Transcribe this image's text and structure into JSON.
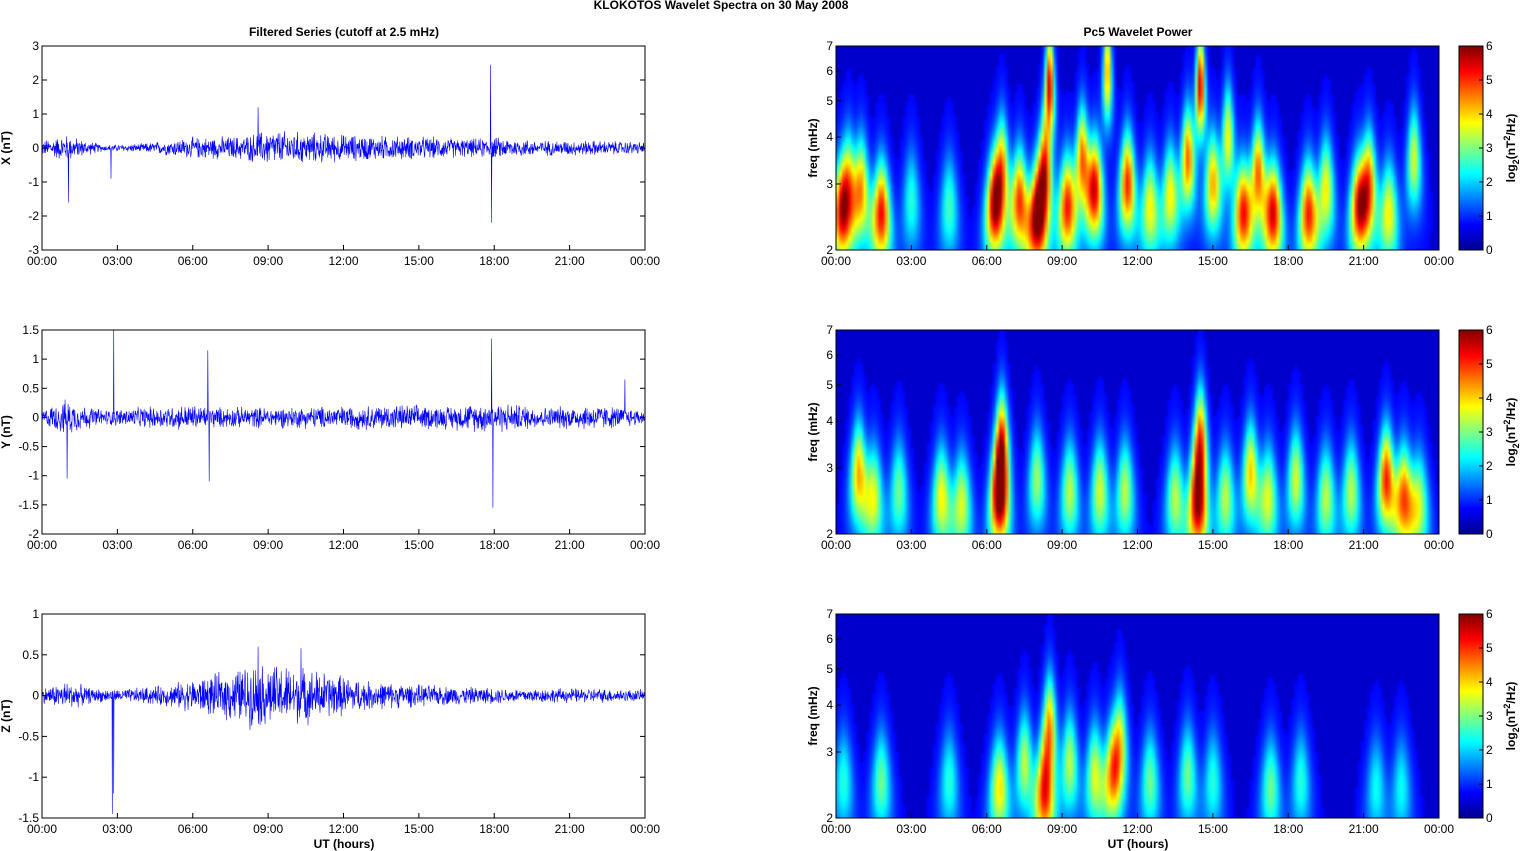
{
  "figure": {
    "title": "KLOKOTOS Wavelet Spectra on 30 May      2008",
    "left_title": "Filtered Series (cutoff at 2.5 mHz)",
    "right_title": "Pc5 Wavelet Power",
    "xlabel": "UT (hours)",
    "freq_label": "freq (mHz)",
    "colorbar_label_prefix": "log",
    "colorbar_label_sub": "2",
    "colorbar_label_mid": "(nT",
    "colorbar_label_sup": "2",
    "colorbar_label_suffix": "/Hz)"
  },
  "chart_data": [
    {
      "type": "line",
      "name": "x-series",
      "ylabel": "X (nT)",
      "xlim": [
        0,
        24
      ],
      "ylim": [
        -3,
        3
      ],
      "xticks": [
        "00:00",
        "03:00",
        "06:00",
        "09:00",
        "12:00",
        "15:00",
        "18:00",
        "21:00",
        "00:00"
      ],
      "yticks": [
        "-3",
        "-2",
        "-1",
        "0",
        "1",
        "2",
        "3"
      ],
      "color": "#0000ff",
      "noise_envelope": [
        [
          0,
          0.25
        ],
        [
          1,
          0.45
        ],
        [
          1.5,
          0.3
        ],
        [
          2.5,
          0.1
        ],
        [
          4,
          0.15
        ],
        [
          6,
          0.35
        ],
        [
          8,
          0.4
        ],
        [
          9,
          0.6
        ],
        [
          10,
          0.55
        ],
        [
          12,
          0.45
        ],
        [
          14,
          0.4
        ],
        [
          16,
          0.35
        ],
        [
          17,
          0.3
        ],
        [
          18,
          0.35
        ],
        [
          20,
          0.25
        ],
        [
          22,
          0.25
        ],
        [
          24,
          0.2
        ]
      ],
      "spikes": [
        [
          1.05,
          -1.6
        ],
        [
          2.75,
          -0.9
        ],
        [
          8.6,
          1.2
        ],
        [
          17.85,
          2.45
        ],
        [
          17.9,
          -2.2
        ]
      ]
    },
    {
      "type": "line",
      "name": "y-series",
      "ylabel": "Y (nT)",
      "xlim": [
        0,
        24
      ],
      "ylim": [
        -2,
        1.5
      ],
      "xticks": [
        "00:00",
        "03:00",
        "06:00",
        "09:00",
        "12:00",
        "15:00",
        "18:00",
        "21:00",
        "00:00"
      ],
      "yticks": [
        "-2",
        "-1.5",
        "-1",
        "-0.5",
        "0",
        "0.5",
        "1",
        "1.5"
      ],
      "color": "#0000ff",
      "noise_envelope": [
        [
          0,
          0.15
        ],
        [
          1,
          0.35
        ],
        [
          1.5,
          0.25
        ],
        [
          2.5,
          0.15
        ],
        [
          4,
          0.2
        ],
        [
          6,
          0.25
        ],
        [
          7,
          0.2
        ],
        [
          9,
          0.2
        ],
        [
          12,
          0.22
        ],
        [
          14,
          0.25
        ],
        [
          16,
          0.22
        ],
        [
          18,
          0.3
        ],
        [
          20,
          0.2
        ],
        [
          22,
          0.25
        ],
        [
          24,
          0.15
        ]
      ],
      "spikes": [
        [
          1.0,
          -1.05
        ],
        [
          2.85,
          1.5
        ],
        [
          6.6,
          1.15
        ],
        [
          6.65,
          -1.1
        ],
        [
          17.9,
          1.35
        ],
        [
          17.95,
          -1.55
        ],
        [
          23.2,
          0.65
        ]
      ]
    },
    {
      "type": "line",
      "name": "z-series",
      "ylabel": "Z (nT)",
      "xlim": [
        0,
        24
      ],
      "ylim": [
        -1.5,
        1
      ],
      "xticks": [
        "00:00",
        "03:00",
        "06:00",
        "09:00",
        "12:00",
        "15:00",
        "18:00",
        "21:00",
        "00:00"
      ],
      "yticks": [
        "-1.5",
        "-1",
        "-0.5",
        "0",
        "0.5",
        "1"
      ],
      "color": "#0000ff",
      "noise_envelope": [
        [
          0,
          0.1
        ],
        [
          1,
          0.2
        ],
        [
          2,
          0.1
        ],
        [
          3,
          0.08
        ],
        [
          5,
          0.15
        ],
        [
          7,
          0.3
        ],
        [
          8.5,
          0.45
        ],
        [
          10,
          0.4
        ],
        [
          11,
          0.35
        ],
        [
          13,
          0.2
        ],
        [
          15,
          0.15
        ],
        [
          17,
          0.12
        ],
        [
          19,
          0.1
        ],
        [
          22,
          0.1
        ],
        [
          24,
          0.08
        ]
      ],
      "spikes": [
        [
          2.8,
          -1.45
        ],
        [
          2.85,
          -1.2
        ],
        [
          8.6,
          0.6
        ],
        [
          10.3,
          0.58
        ]
      ]
    },
    {
      "type": "heatmap",
      "name": "x-wavelet",
      "ylabel": "freq (mHz)",
      "xlim": [
        0,
        24
      ],
      "ylim": [
        2,
        7
      ],
      "y_scale": "log",
      "yticks": [
        "2",
        "3",
        "4",
        "5",
        "6",
        "7"
      ],
      "xticks": [
        "00:00",
        "03:00",
        "06:00",
        "09:00",
        "12:00",
        "15:00",
        "18:00",
        "21:00",
        "00:00"
      ],
      "colorbar": {
        "range": [
          0,
          6
        ],
        "ticks": [
          "0",
          "1",
          "2",
          "3",
          "4",
          "5",
          "6"
        ],
        "colormap": "jet"
      },
      "blobs": [
        [
          0.2,
          2.5,
          4.5
        ],
        [
          0.5,
          3.0,
          3.5
        ],
        [
          1.0,
          2.9,
          4.0
        ],
        [
          1.8,
          2.5,
          5.2
        ],
        [
          3.0,
          2.7,
          2.0
        ],
        [
          4.5,
          2.6,
          2.2
        ],
        [
          6.3,
          2.6,
          5.2
        ],
        [
          6.6,
          3.3,
          4.0
        ],
        [
          7.3,
          2.7,
          4.8
        ],
        [
          8.0,
          2.4,
          5.5
        ],
        [
          8.3,
          3.2,
          5.0
        ],
        [
          8.5,
          5.5,
          5.5
        ],
        [
          9.2,
          2.6,
          5.0
        ],
        [
          9.8,
          3.5,
          4.5
        ],
        [
          10.3,
          2.9,
          5.3
        ],
        [
          10.8,
          6.0,
          4.2
        ],
        [
          11.6,
          3.0,
          5.0
        ],
        [
          12.5,
          2.6,
          3.5
        ],
        [
          13.3,
          2.8,
          3.5
        ],
        [
          14.0,
          3.5,
          4.5
        ],
        [
          14.5,
          5.5,
          5.5
        ],
        [
          15.0,
          3.0,
          4.0
        ],
        [
          15.6,
          4.0,
          3.5
        ],
        [
          16.2,
          2.5,
          5.0
        ],
        [
          16.8,
          3.2,
          4.5
        ],
        [
          17.4,
          2.5,
          5.3
        ],
        [
          18.8,
          2.5,
          5.0
        ],
        [
          19.5,
          2.9,
          3.5
        ],
        [
          20.8,
          2.6,
          4.8
        ],
        [
          21.2,
          3.0,
          4.5
        ],
        [
          22.0,
          2.5,
          3.5
        ],
        [
          23.0,
          3.5,
          3.2
        ]
      ]
    },
    {
      "type": "heatmap",
      "name": "y-wavelet",
      "ylabel": "freq (mHz)",
      "xlim": [
        0,
        24
      ],
      "ylim": [
        2,
        7
      ],
      "y_scale": "log",
      "yticks": [
        "2",
        "3",
        "4",
        "5",
        "6",
        "7"
      ],
      "xticks": [
        "00:00",
        "03:00",
        "06:00",
        "09:00",
        "12:00",
        "15:00",
        "18:00",
        "21:00",
        "00:00"
      ],
      "colorbar": {
        "range": [
          0,
          6
        ],
        "ticks": [
          "0",
          "1",
          "2",
          "3",
          "4",
          "5",
          "6"
        ],
        "colormap": "jet"
      },
      "blobs": [
        [
          0.9,
          2.9,
          4.0
        ],
        [
          1.5,
          2.5,
          3.2
        ],
        [
          2.5,
          2.6,
          2.5
        ],
        [
          4.2,
          2.5,
          3.5
        ],
        [
          5.0,
          2.4,
          3.2
        ],
        [
          6.5,
          2.5,
          5.8
        ],
        [
          6.6,
          3.5,
          4.6
        ],
        [
          8.0,
          2.8,
          2.8
        ],
        [
          9.3,
          2.6,
          3.0
        ],
        [
          10.5,
          2.6,
          3.2
        ],
        [
          11.5,
          2.6,
          3.0
        ],
        [
          13.5,
          2.5,
          3.0
        ],
        [
          14.4,
          2.4,
          5.6
        ],
        [
          14.5,
          3.6,
          4.4
        ],
        [
          15.5,
          2.5,
          3.0
        ],
        [
          16.5,
          2.9,
          3.8
        ],
        [
          17.2,
          2.5,
          3.2
        ],
        [
          18.3,
          2.8,
          3.2
        ],
        [
          19.5,
          2.5,
          3.0
        ],
        [
          20.5,
          2.6,
          3.0
        ],
        [
          21.9,
          2.8,
          5.0
        ],
        [
          22.6,
          2.5,
          4.5
        ],
        [
          23.2,
          2.4,
          3.0
        ]
      ]
    },
    {
      "type": "heatmap",
      "name": "z-wavelet",
      "ylabel": "freq (mHz)",
      "xlim": [
        0,
        24
      ],
      "ylim": [
        2,
        7
      ],
      "y_scale": "log",
      "yticks": [
        "2",
        "3",
        "4",
        "5",
        "6",
        "7"
      ],
      "xticks": [
        "00:00",
        "03:00",
        "06:00",
        "09:00",
        "12:00",
        "15:00",
        "18:00",
        "21:00",
        "00:00"
      ],
      "colorbar": {
        "range": [
          0,
          6
        ],
        "ticks": [
          "0",
          "1",
          "2",
          "3",
          "4",
          "5",
          "6"
        ],
        "colormap": "jet"
      },
      "blobs": [
        [
          0.3,
          2.5,
          2.0
        ],
        [
          1.8,
          2.5,
          2.5
        ],
        [
          4.5,
          2.5,
          2.0
        ],
        [
          6.5,
          2.4,
          3.6
        ],
        [
          7.5,
          2.8,
          3.0
        ],
        [
          8.3,
          2.3,
          4.8
        ],
        [
          8.5,
          3.5,
          4.0
        ],
        [
          9.3,
          2.8,
          3.0
        ],
        [
          10.3,
          2.6,
          3.2
        ],
        [
          11.0,
          2.6,
          3.8
        ],
        [
          11.3,
          3.2,
          3.2
        ],
        [
          12.5,
          2.5,
          2.5
        ],
        [
          14.0,
          2.6,
          2.5
        ],
        [
          15.0,
          2.5,
          2.0
        ],
        [
          17.3,
          2.4,
          2.5
        ],
        [
          18.5,
          2.5,
          2.0
        ],
        [
          21.5,
          2.4,
          1.8
        ],
        [
          22.5,
          2.4,
          1.8
        ]
      ]
    }
  ]
}
